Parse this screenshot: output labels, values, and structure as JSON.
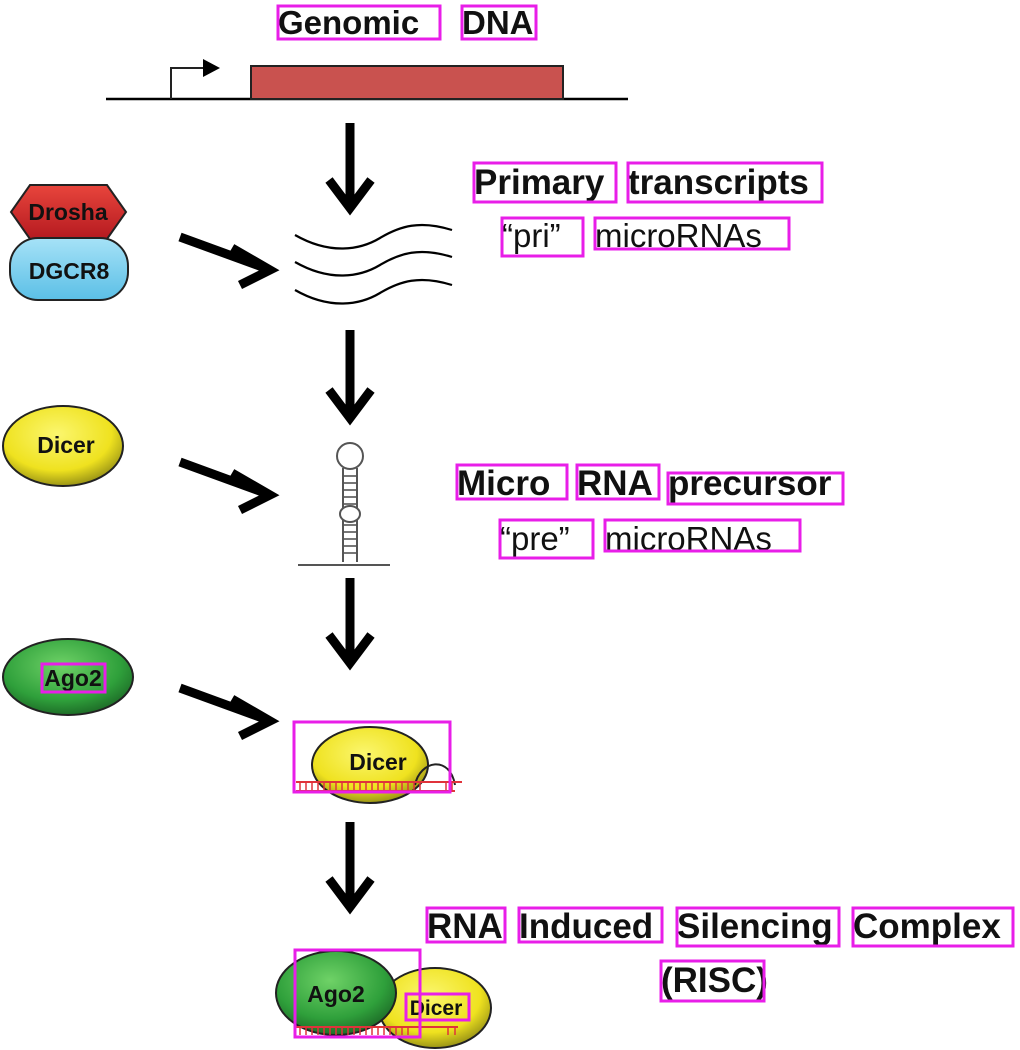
{
  "genomic": {
    "word1": "Genomic",
    "word2": "DNA"
  },
  "primary": {
    "line1a": "Primary",
    "line1b": "transcripts",
    "line2a": "“pri”",
    "line2b": "microRNAs"
  },
  "precursor": {
    "line1a": "Micro",
    "line1b": "RNA",
    "line1c": "precursor",
    "line2a": "“pre”",
    "line2b": "microRNAs"
  },
  "risc": {
    "line1a": "RNA",
    "line1b": "Induced",
    "line1c": "Silencing",
    "line1d": "Complex",
    "line2": "(RISC)"
  },
  "enzymes": {
    "drosha": "Drosha",
    "dgcr8": "DGCR8",
    "dicer": "Dicer",
    "ago2": "Ago2"
  },
  "complex": {
    "dicer": "Dicer",
    "ago2": "Ago2",
    "dicer_small": "Dicer"
  },
  "colors": {
    "gene_box": "#c9524f",
    "drosha": "#d8232a",
    "dgcr8": "#7fd0f0",
    "dicer": "#f2ea2a",
    "ago2": "#35a942",
    "rna_ticks": "#e0333b",
    "highlight": "#e81ee8"
  }
}
